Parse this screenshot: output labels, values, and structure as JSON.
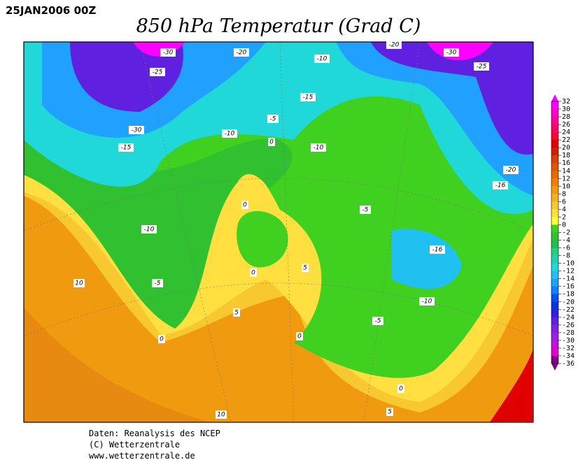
{
  "header": {
    "date": "25JAN2006 00Z",
    "title": "850 hPa Temperatur (Grad C)"
  },
  "map": {
    "contour_labels": [
      "-30",
      "-20",
      "-10",
      "-20",
      "-30",
      "-25",
      "-25",
      "-15",
      "-30",
      "-5",
      "-10",
      "0",
      "-10",
      "-15",
      "-20",
      "-16",
      "-5",
      "0",
      "-10",
      "-16",
      "0",
      "5",
      "10",
      "-5",
      "-10",
      "5",
      "-5",
      "0",
      "0",
      "0",
      "5",
      "10"
    ]
  },
  "colorbar": {
    "levels": [
      32,
      30,
      28,
      26,
      24,
      22,
      20,
      18,
      16,
      14,
      12,
      10,
      8,
      6,
      4,
      2,
      0,
      -2,
      -4,
      -6,
      -8,
      -10,
      -12,
      -14,
      -16,
      -18,
      -20,
      -22,
      -24,
      -26,
      -28,
      -30,
      -32,
      -34,
      -36
    ],
    "colors": [
      "#ff00ff",
      "#ff00cc",
      "#ff0099",
      "#ff0066",
      "#ff0033",
      "#e00000",
      "#cc2200",
      "#d84000",
      "#e05500",
      "#e86a00",
      "#f08000",
      "#f09a10",
      "#f5b020",
      "#f8c830",
      "#ffe040",
      "#ffff30",
      "#40d020",
      "#30c030",
      "#20c050",
      "#20d080",
      "#20d0b0",
      "#20d8d8",
      "#20c0f0",
      "#20a0ff",
      "#1080ff",
      "#0050f0",
      "#1030e0",
      "#3020e0",
      "#6020e0",
      "#8020e0",
      "#a020e0",
      "#c010e0",
      "#e000d0",
      "#800080"
    ]
  },
  "footer": {
    "lines": [
      "Daten: Reanalysis des NCEP",
      "(C) Wetterzentrale",
      "www.wetterzentrale.de"
    ]
  }
}
